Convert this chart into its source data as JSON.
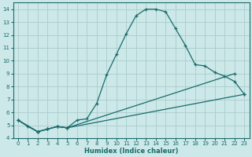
{
  "xlabel": "Humidex (Indice chaleur)",
  "bg_color": "#cce8e8",
  "grid_color": "#aacccc",
  "line_color": "#1a6b6b",
  "xlim": [
    -0.5,
    23.5
  ],
  "ylim": [
    4,
    14.5
  ],
  "xticks": [
    0,
    1,
    2,
    3,
    4,
    5,
    6,
    7,
    8,
    9,
    10,
    11,
    12,
    13,
    14,
    15,
    16,
    17,
    18,
    19,
    20,
    21,
    22,
    23
  ],
  "yticks": [
    4,
    5,
    6,
    7,
    8,
    9,
    10,
    11,
    12,
    13,
    14
  ],
  "curve1_x": [
    0,
    1,
    2,
    3,
    4,
    5,
    6,
    7,
    8,
    9,
    10,
    11,
    12,
    13,
    14,
    15,
    16,
    17,
    18,
    19,
    20,
    21,
    22,
    23
  ],
  "curve1_y": [
    5.4,
    4.9,
    4.5,
    4.7,
    4.9,
    4.8,
    5.4,
    5.5,
    6.7,
    8.9,
    10.5,
    12.1,
    13.5,
    14.0,
    14.0,
    13.8,
    12.5,
    11.2,
    9.7,
    9.6,
    9.1,
    8.8,
    8.4,
    7.4
  ],
  "curve2_x": [
    0,
    2,
    3,
    4,
    5,
    22
  ],
  "curve2_y": [
    5.4,
    4.5,
    4.7,
    4.9,
    4.8,
    9.0
  ],
  "curve3_x": [
    0,
    2,
    3,
    4,
    5,
    23
  ],
  "curve3_y": [
    5.4,
    4.5,
    4.7,
    4.9,
    4.8,
    7.4
  ]
}
